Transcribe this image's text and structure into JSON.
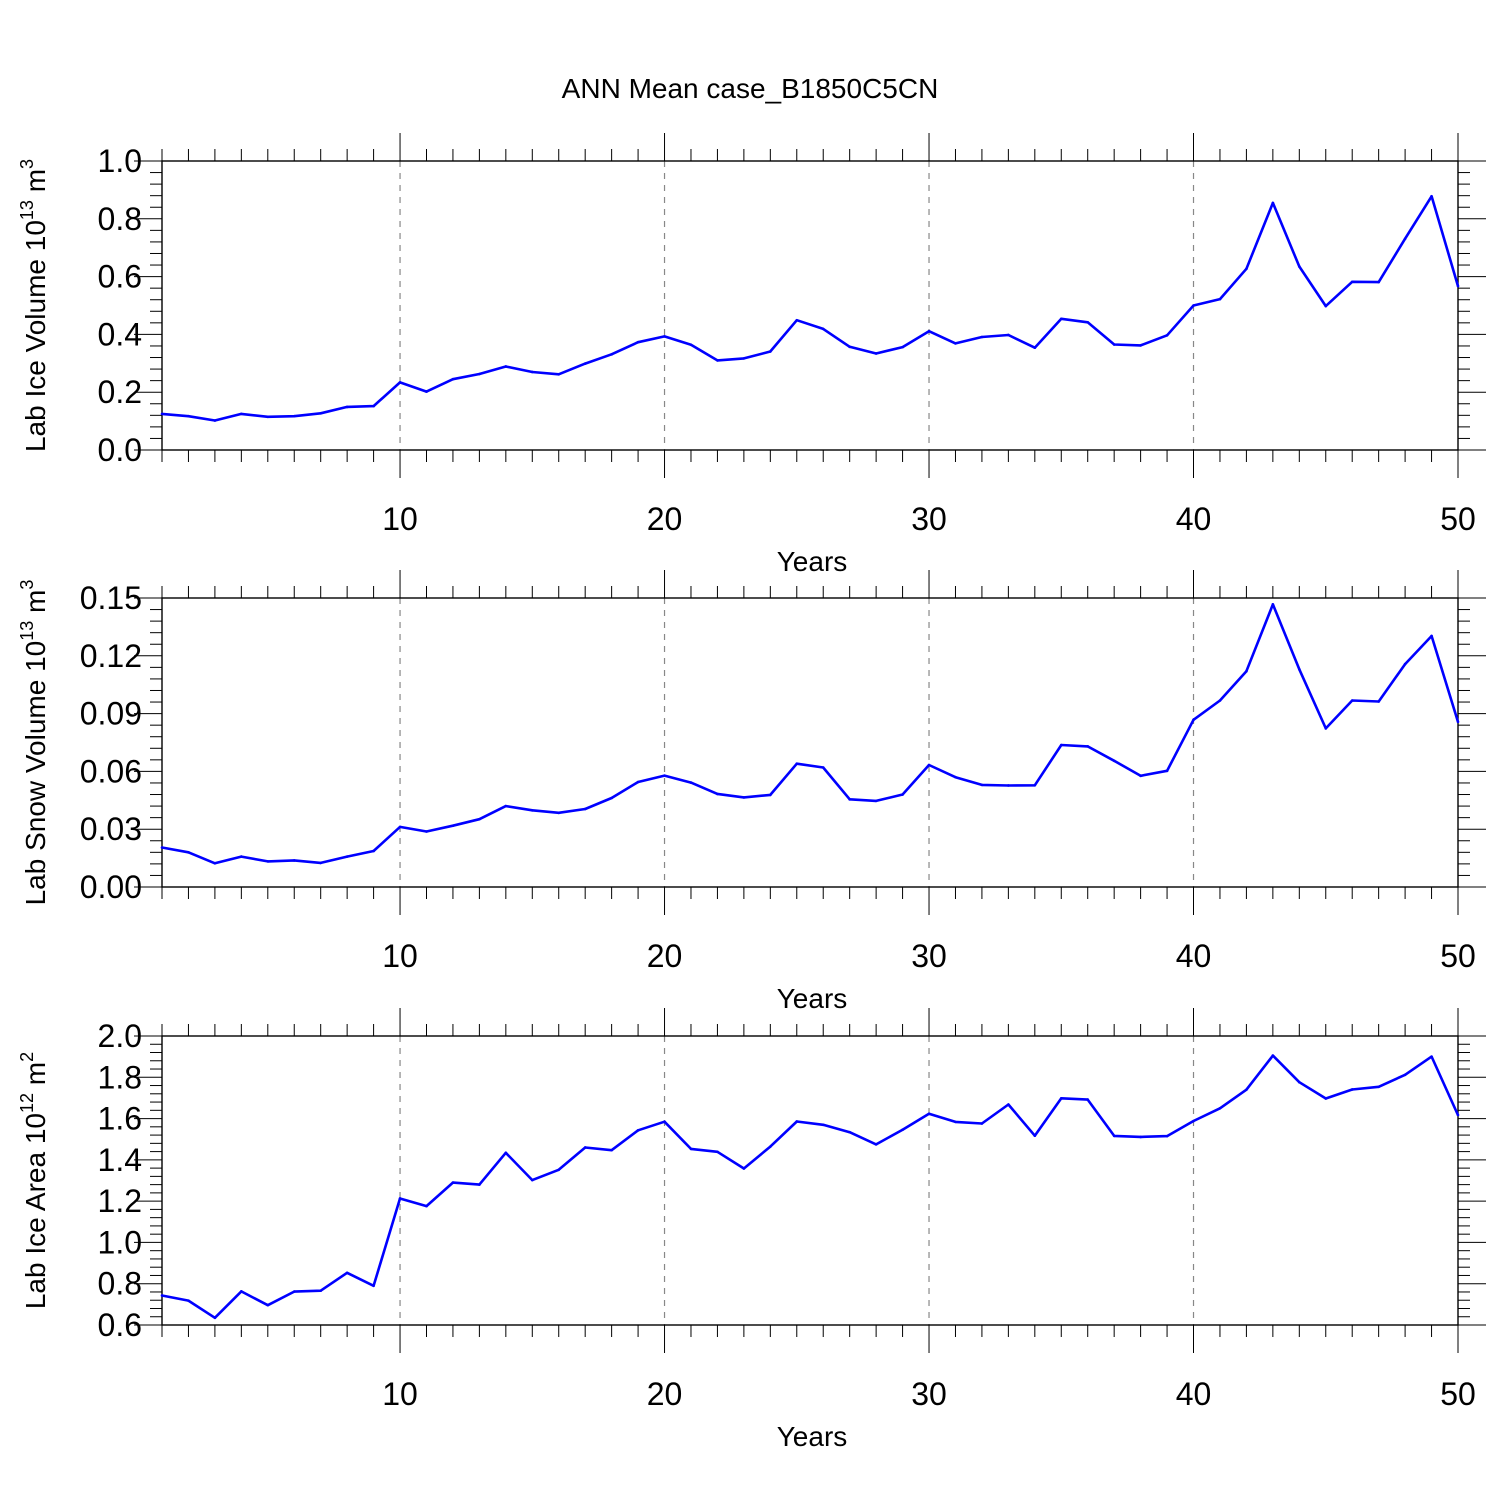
{
  "figure": {
    "title": "ANN Mean case_B1850C5CN"
  },
  "chart_data": [
    {
      "type": "line",
      "xlabel": "Years",
      "ylabel": "Lab Ice Volume 10",
      "ylabel_exp": "13",
      "ylabel_unit": " m",
      "ylabel_unit_exp": "3",
      "xlim": [
        1,
        50
      ],
      "ylim": [
        0.0,
        1.0
      ],
      "xticks": [
        10,
        20,
        30,
        40,
        50
      ],
      "yticks": [
        "0.0",
        "0.2",
        "0.4",
        "0.6",
        "0.8",
        "1.0"
      ],
      "line_color": "#0000ff",
      "grid": "vertical dashed at major x ticks",
      "series": [
        {
          "x": [
            1,
            2,
            3,
            4,
            5,
            6,
            7,
            8,
            9,
            10,
            11,
            12,
            13,
            14,
            15,
            16,
            17,
            18,
            19,
            20,
            21,
            22,
            23,
            24,
            25,
            26,
            27,
            28,
            29,
            30,
            31,
            32,
            33,
            34,
            35,
            36,
            37,
            38,
            39,
            40,
            41,
            42,
            43,
            44,
            45,
            46,
            47,
            48,
            49,
            50
          ],
          "values": [
            0.125,
            0.117,
            0.102,
            0.125,
            0.115,
            0.117,
            0.127,
            0.149,
            0.152,
            0.234,
            0.202,
            0.245,
            0.263,
            0.289,
            0.27,
            0.262,
            0.299,
            0.331,
            0.373,
            0.393,
            0.364,
            0.31,
            0.317,
            0.341,
            0.449,
            0.419,
            0.357,
            0.334,
            0.356,
            0.411,
            0.369,
            0.391,
            0.398,
            0.354,
            0.454,
            0.442,
            0.365,
            0.362,
            0.397,
            0.5,
            0.522,
            0.627,
            0.855,
            0.635,
            0.498,
            0.582,
            0.581,
            0.731,
            0.878,
            0.567
          ]
        }
      ]
    },
    {
      "type": "line",
      "xlabel": "Years",
      "ylabel": "Lab Snow Volume 10",
      "ylabel_exp": "13",
      "ylabel_unit": " m",
      "ylabel_unit_exp": "3",
      "xlim": [
        1,
        50
      ],
      "ylim": [
        0.0,
        0.15
      ],
      "xticks": [
        10,
        20,
        30,
        40,
        50
      ],
      "yticks": [
        "0.00",
        "0.03",
        "0.06",
        "0.09",
        "0.12",
        "0.15"
      ],
      "line_color": "#0000ff",
      "grid": "vertical dashed at major x ticks",
      "series": [
        {
          "x": [
            1,
            2,
            3,
            4,
            5,
            6,
            7,
            8,
            9,
            10,
            11,
            12,
            13,
            14,
            15,
            16,
            17,
            18,
            19,
            20,
            21,
            22,
            23,
            24,
            25,
            26,
            27,
            28,
            29,
            30,
            31,
            32,
            33,
            34,
            35,
            36,
            37,
            38,
            39,
            40,
            41,
            42,
            43,
            44,
            45,
            46,
            47,
            48,
            49,
            50
          ],
          "values": [
            0.0205,
            0.018,
            0.0123,
            0.0158,
            0.0133,
            0.0138,
            0.0125,
            0.0158,
            0.0187,
            0.0312,
            0.0288,
            0.0318,
            0.0352,
            0.042,
            0.0398,
            0.0385,
            0.0405,
            0.0462,
            0.0545,
            0.0578,
            0.0542,
            0.0483,
            0.0465,
            0.0478,
            0.064,
            0.062,
            0.0455,
            0.0447,
            0.048,
            0.0633,
            0.057,
            0.053,
            0.0527,
            0.0528,
            0.0737,
            0.073,
            0.0655,
            0.0577,
            0.0603,
            0.0868,
            0.0968,
            0.112,
            0.1467,
            0.113,
            0.0823,
            0.0968,
            0.0963,
            0.1157,
            0.1303,
            0.0857
          ]
        }
      ]
    },
    {
      "type": "line",
      "xlabel": "Years",
      "ylabel": "Lab Ice Area 10",
      "ylabel_exp": "12",
      "ylabel_unit": " m",
      "ylabel_unit_exp": "2",
      "xlim": [
        1,
        50
      ],
      "ylim": [
        0.6,
        2.0
      ],
      "xticks": [
        10,
        20,
        30,
        40,
        50
      ],
      "yticks": [
        "0.6",
        "0.8",
        "1.0",
        "1.2",
        "1.4",
        "1.6",
        "1.8",
        "2.0"
      ],
      "line_color": "#0000ff",
      "grid": "vertical dashed at major x ticks",
      "series": [
        {
          "x": [
            1,
            2,
            3,
            4,
            5,
            6,
            7,
            8,
            9,
            10,
            11,
            12,
            13,
            14,
            15,
            16,
            17,
            18,
            19,
            20,
            21,
            22,
            23,
            24,
            25,
            26,
            27,
            28,
            29,
            30,
            31,
            32,
            33,
            34,
            35,
            36,
            37,
            38,
            39,
            40,
            41,
            42,
            43,
            44,
            45,
            46,
            47,
            48,
            49,
            50
          ],
          "values": [
            0.743,
            0.718,
            0.635,
            0.763,
            0.696,
            0.762,
            0.766,
            0.853,
            0.79,
            1.213,
            1.176,
            1.29,
            1.28,
            1.434,
            1.302,
            1.352,
            1.46,
            1.447,
            1.543,
            1.585,
            1.453,
            1.439,
            1.358,
            1.464,
            1.586,
            1.57,
            1.534,
            1.475,
            1.546,
            1.623,
            1.584,
            1.576,
            1.668,
            1.517,
            1.698,
            1.692,
            1.516,
            1.511,
            1.515,
            1.588,
            1.65,
            1.74,
            1.905,
            1.776,
            1.697,
            1.741,
            1.754,
            1.812,
            1.9,
            1.617
          ]
        }
      ]
    }
  ]
}
